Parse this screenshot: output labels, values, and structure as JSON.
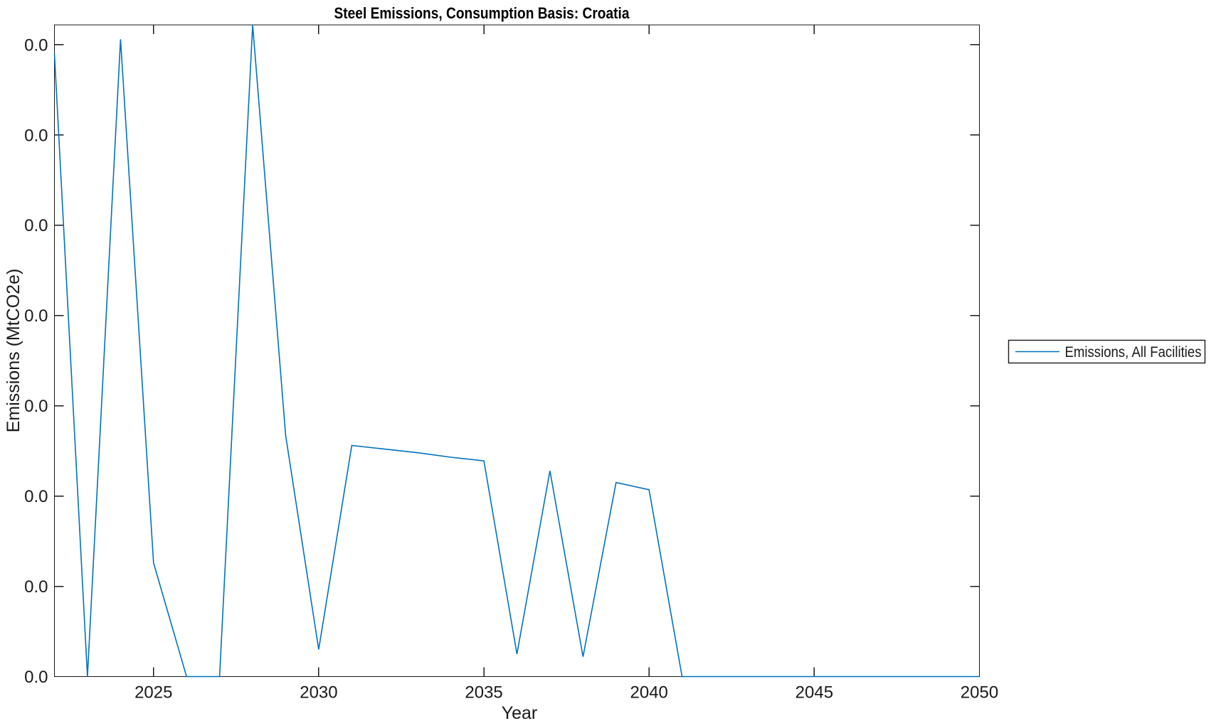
{
  "chart_data": {
    "type": "line",
    "title": "Steel Emissions, Consumption Basis: Croatia",
    "xlabel": "Year",
    "ylabel": "Emissions (MtCO2e)",
    "legend": {
      "position": "outside-right",
      "entries": [
        "Emissions, All Facilities"
      ]
    },
    "line_color": "#0072BD",
    "axis_color": "#1a1a1a",
    "background_color": "#ffffff",
    "grid": false,
    "box": true,
    "ticks_direction": "in-mirrored",
    "xlim": [
      2022,
      2050
    ],
    "ylim": [
      0,
      7.22
    ],
    "xticks": [
      2025,
      2030,
      2035,
      2040,
      2045,
      2050
    ],
    "ytick_values": [
      0,
      1,
      2,
      3,
      4,
      5,
      6,
      7
    ],
    "ytick_label_text": "0.0",
    "y_unit_note": "every y-axis tick label displays 0.0 (values too small for label precision); series values below are in y-tick-interval units estimated from pixel positions",
    "series": [
      {
        "name": "Emissions, All Facilities",
        "x": [
          2022,
          2023,
          2024,
          2025,
          2026,
          2027,
          2028,
          2029,
          2030,
          2031,
          2032,
          2033,
          2034,
          2035,
          2036,
          2037,
          2038,
          2039,
          2040,
          2041,
          2042,
          2043,
          2044,
          2045,
          2046,
          2047,
          2048,
          2049,
          2050
        ],
        "values": [
          6.9,
          0,
          7.06,
          1.26,
          0,
          0,
          7.22,
          2.67,
          0.3,
          2.56,
          2.52,
          2.48,
          2.43,
          2.39,
          0.25,
          2.28,
          0.22,
          2.15,
          2.07,
          0,
          0,
          0,
          0,
          0,
          0,
          0,
          0,
          0,
          0
        ]
      }
    ]
  }
}
